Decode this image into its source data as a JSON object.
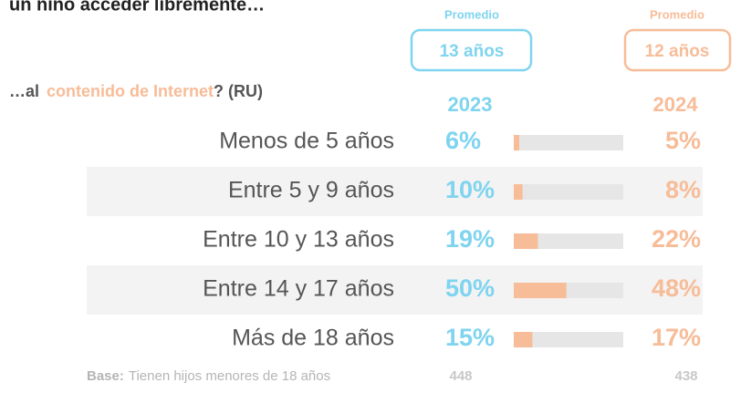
{
  "chart_data": {
    "type": "bar",
    "title": "un niño acceder libremente…",
    "subtitle_parts": [
      "…al",
      "contenido de Internet",
      "? (RU)"
    ],
    "annotations": [
      {
        "label": "Promedio",
        "text": "13 años"
      },
      {
        "label": "Promedio",
        "text": "12 años"
      }
    ],
    "categories": [
      "Menos de 5 años",
      "Entre 5 y 9 años",
      "Entre 10 y 13 años",
      "Entre 14 y 17 años",
      "Más de 18 años"
    ],
    "series": [
      {
        "name": "2023",
        "color": "#7fd4ef",
        "values": [
          6,
          10,
          19,
          50,
          15
        ],
        "value_labels": [
          "6%",
          "10%",
          "19%",
          "50%",
          "15%"
        ]
      },
      {
        "name": "2024",
        "color": "#f7bc98",
        "values": [
          5,
          8,
          22,
          48,
          17
        ],
        "value_labels": [
          "5%",
          "8%",
          "22%",
          "48%",
          "17%"
        ]
      }
    ],
    "xlim": [
      0,
      100
    ],
    "base": {
      "label": "Base:",
      "text": "Tienen hijos menores de 18 años",
      "values": [
        448,
        438
      ]
    }
  }
}
